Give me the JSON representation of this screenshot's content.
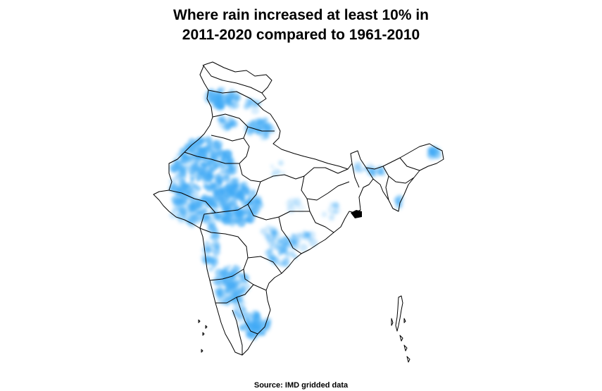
{
  "title": {
    "line1": "Where rain increased at least 10% in",
    "line2": "2011-2020 compared to 1961-2010"
  },
  "source": "Source: IMD gridded data",
  "colors": {
    "dot": "#3fa9f5",
    "boundary": "#000000",
    "background": "#ffffff"
  }
}
